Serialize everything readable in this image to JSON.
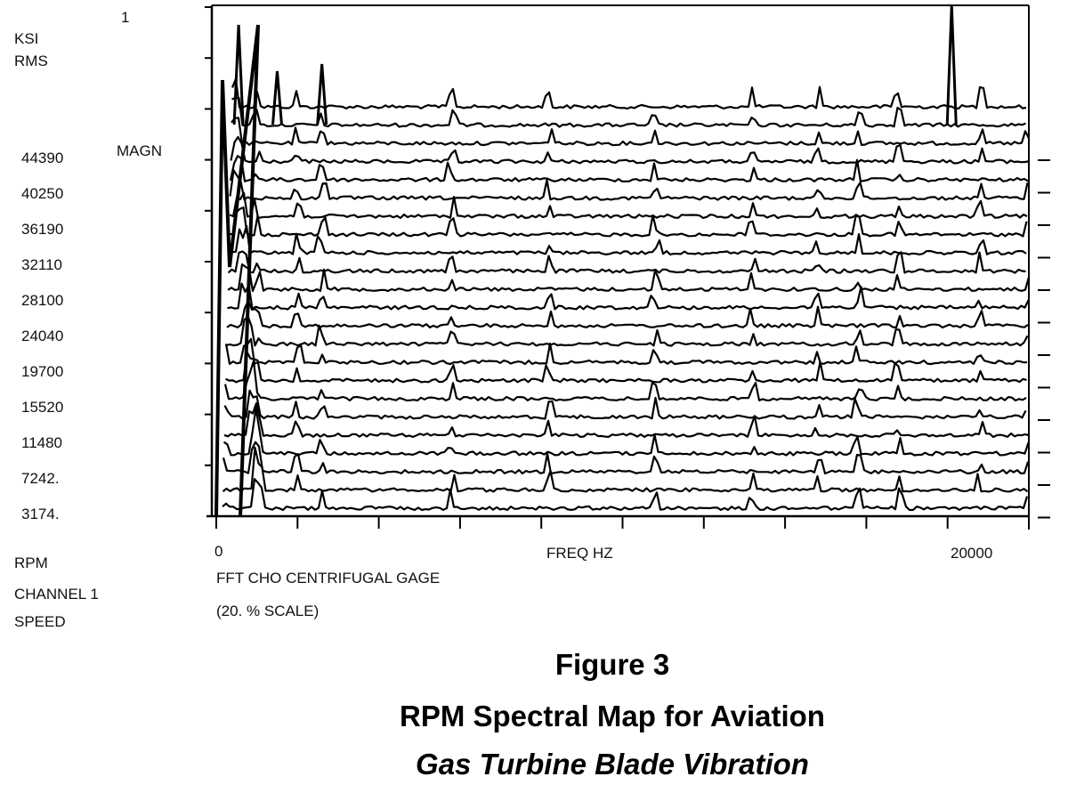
{
  "chart_data": {
    "type": "waterfall-spectrum",
    "y_axis_label": [
      "KSI",
      "RMS"
    ],
    "y_axis_top_tick": "1",
    "magnitude_label": "MAGN",
    "rpm_labels": [
      "44390",
      "40250",
      "36190",
      "32110",
      "28100",
      "24040",
      "19700",
      "15520",
      "11480",
      "7242.",
      "3174."
    ],
    "rpm_axis_label": [
      "RPM",
      "CHANNEL 1",
      "SPEED"
    ],
    "x_tick_min": "0",
    "x_tick_max": "20000",
    "xlim": [
      0,
      20000
    ],
    "x_label": "FREQ HZ",
    "channel_label": "FFT CHO CENTRIFUGAL GAGE",
    "scale_label": "(20. % SCALE)",
    "trace_count": 23,
    "peaks_hz": [
      200,
      1000,
      2000,
      2600,
      5800,
      8200,
      10800,
      13200,
      14800,
      15800,
      16800,
      18800,
      20000
    ],
    "grid": false,
    "legend": "none"
  },
  "caption": {
    "line1": "Figure 3",
    "line2": "RPM Spectral Map for Aviation",
    "line3": "Gas Turbine Blade Vibration"
  }
}
